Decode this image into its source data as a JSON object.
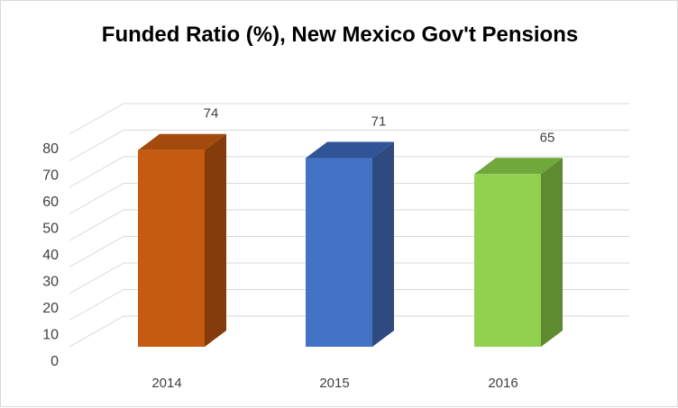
{
  "chart_data": {
    "type": "bar",
    "title": "Funded Ratio (%), New Mexico Gov't Pensions",
    "categories": [
      "2014",
      "2015",
      "2016"
    ],
    "values": [
      74,
      71,
      65
    ],
    "data_labels": [
      "74",
      "71",
      "65"
    ],
    "ylim": [
      0,
      80
    ],
    "yticks": [
      "0",
      "10",
      "20",
      "30",
      "40",
      "50",
      "60",
      "70",
      "80"
    ],
    "xlabel": "",
    "ylabel": "",
    "grid": true,
    "style": "3d-column",
    "colors": {
      "front": [
        "#c55a11",
        "#4472c4",
        "#92d050"
      ],
      "top": [
        "#a34a0c",
        "#2f5597",
        "#70a83c"
      ],
      "side": [
        "#843c0c",
        "#2e4a7e",
        "#5e8a30"
      ],
      "grid": "#d9d9d9",
      "text": "#404040"
    }
  }
}
